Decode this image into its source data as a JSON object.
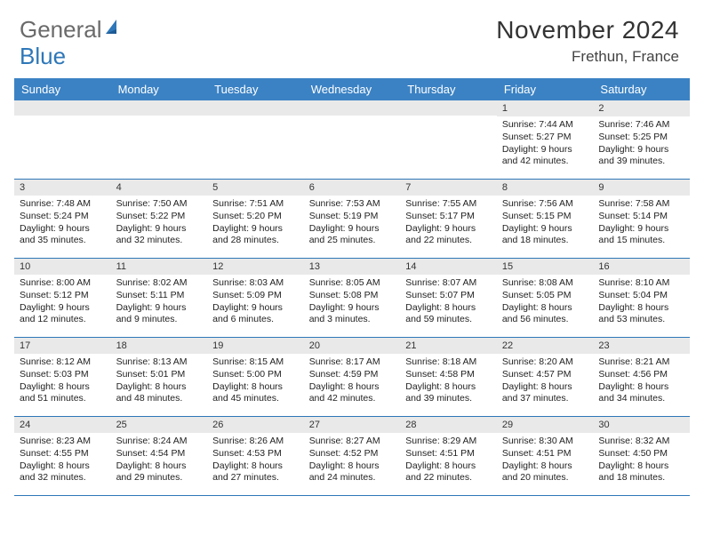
{
  "logo": {
    "part1": "General",
    "part2": "Blue"
  },
  "title": {
    "month": "November 2024",
    "location": "Frethun, France"
  },
  "colors": {
    "header_bg": "#3b82c4",
    "row_border": "#2e77b8",
    "num_bg": "#e9e9e9",
    "logo_gray": "#6a6a6a",
    "logo_blue": "#2e77b8",
    "text": "#222222",
    "bg": "#ffffff"
  },
  "day_names": [
    "Sunday",
    "Monday",
    "Tuesday",
    "Wednesday",
    "Thursday",
    "Friday",
    "Saturday"
  ],
  "weeks": [
    [
      {
        "n": "",
        "sr": "",
        "ss": "",
        "dl": ""
      },
      {
        "n": "",
        "sr": "",
        "ss": "",
        "dl": ""
      },
      {
        "n": "",
        "sr": "",
        "ss": "",
        "dl": ""
      },
      {
        "n": "",
        "sr": "",
        "ss": "",
        "dl": ""
      },
      {
        "n": "",
        "sr": "",
        "ss": "",
        "dl": ""
      },
      {
        "n": "1",
        "sr": "Sunrise: 7:44 AM",
        "ss": "Sunset: 5:27 PM",
        "dl": "Daylight: 9 hours and 42 minutes."
      },
      {
        "n": "2",
        "sr": "Sunrise: 7:46 AM",
        "ss": "Sunset: 5:25 PM",
        "dl": "Daylight: 9 hours and 39 minutes."
      }
    ],
    [
      {
        "n": "3",
        "sr": "Sunrise: 7:48 AM",
        "ss": "Sunset: 5:24 PM",
        "dl": "Daylight: 9 hours and 35 minutes."
      },
      {
        "n": "4",
        "sr": "Sunrise: 7:50 AM",
        "ss": "Sunset: 5:22 PM",
        "dl": "Daylight: 9 hours and 32 minutes."
      },
      {
        "n": "5",
        "sr": "Sunrise: 7:51 AM",
        "ss": "Sunset: 5:20 PM",
        "dl": "Daylight: 9 hours and 28 minutes."
      },
      {
        "n": "6",
        "sr": "Sunrise: 7:53 AM",
        "ss": "Sunset: 5:19 PM",
        "dl": "Daylight: 9 hours and 25 minutes."
      },
      {
        "n": "7",
        "sr": "Sunrise: 7:55 AM",
        "ss": "Sunset: 5:17 PM",
        "dl": "Daylight: 9 hours and 22 minutes."
      },
      {
        "n": "8",
        "sr": "Sunrise: 7:56 AM",
        "ss": "Sunset: 5:15 PM",
        "dl": "Daylight: 9 hours and 18 minutes."
      },
      {
        "n": "9",
        "sr": "Sunrise: 7:58 AM",
        "ss": "Sunset: 5:14 PM",
        "dl": "Daylight: 9 hours and 15 minutes."
      }
    ],
    [
      {
        "n": "10",
        "sr": "Sunrise: 8:00 AM",
        "ss": "Sunset: 5:12 PM",
        "dl": "Daylight: 9 hours and 12 minutes."
      },
      {
        "n": "11",
        "sr": "Sunrise: 8:02 AM",
        "ss": "Sunset: 5:11 PM",
        "dl": "Daylight: 9 hours and 9 minutes."
      },
      {
        "n": "12",
        "sr": "Sunrise: 8:03 AM",
        "ss": "Sunset: 5:09 PM",
        "dl": "Daylight: 9 hours and 6 minutes."
      },
      {
        "n": "13",
        "sr": "Sunrise: 8:05 AM",
        "ss": "Sunset: 5:08 PM",
        "dl": "Daylight: 9 hours and 3 minutes."
      },
      {
        "n": "14",
        "sr": "Sunrise: 8:07 AM",
        "ss": "Sunset: 5:07 PM",
        "dl": "Daylight: 8 hours and 59 minutes."
      },
      {
        "n": "15",
        "sr": "Sunrise: 8:08 AM",
        "ss": "Sunset: 5:05 PM",
        "dl": "Daylight: 8 hours and 56 minutes."
      },
      {
        "n": "16",
        "sr": "Sunrise: 8:10 AM",
        "ss": "Sunset: 5:04 PM",
        "dl": "Daylight: 8 hours and 53 minutes."
      }
    ],
    [
      {
        "n": "17",
        "sr": "Sunrise: 8:12 AM",
        "ss": "Sunset: 5:03 PM",
        "dl": "Daylight: 8 hours and 51 minutes."
      },
      {
        "n": "18",
        "sr": "Sunrise: 8:13 AM",
        "ss": "Sunset: 5:01 PM",
        "dl": "Daylight: 8 hours and 48 minutes."
      },
      {
        "n": "19",
        "sr": "Sunrise: 8:15 AM",
        "ss": "Sunset: 5:00 PM",
        "dl": "Daylight: 8 hours and 45 minutes."
      },
      {
        "n": "20",
        "sr": "Sunrise: 8:17 AM",
        "ss": "Sunset: 4:59 PM",
        "dl": "Daylight: 8 hours and 42 minutes."
      },
      {
        "n": "21",
        "sr": "Sunrise: 8:18 AM",
        "ss": "Sunset: 4:58 PM",
        "dl": "Daylight: 8 hours and 39 minutes."
      },
      {
        "n": "22",
        "sr": "Sunrise: 8:20 AM",
        "ss": "Sunset: 4:57 PM",
        "dl": "Daylight: 8 hours and 37 minutes."
      },
      {
        "n": "23",
        "sr": "Sunrise: 8:21 AM",
        "ss": "Sunset: 4:56 PM",
        "dl": "Daylight: 8 hours and 34 minutes."
      }
    ],
    [
      {
        "n": "24",
        "sr": "Sunrise: 8:23 AM",
        "ss": "Sunset: 4:55 PM",
        "dl": "Daylight: 8 hours and 32 minutes."
      },
      {
        "n": "25",
        "sr": "Sunrise: 8:24 AM",
        "ss": "Sunset: 4:54 PM",
        "dl": "Daylight: 8 hours and 29 minutes."
      },
      {
        "n": "26",
        "sr": "Sunrise: 8:26 AM",
        "ss": "Sunset: 4:53 PM",
        "dl": "Daylight: 8 hours and 27 minutes."
      },
      {
        "n": "27",
        "sr": "Sunrise: 8:27 AM",
        "ss": "Sunset: 4:52 PM",
        "dl": "Daylight: 8 hours and 24 minutes."
      },
      {
        "n": "28",
        "sr": "Sunrise: 8:29 AM",
        "ss": "Sunset: 4:51 PM",
        "dl": "Daylight: 8 hours and 22 minutes."
      },
      {
        "n": "29",
        "sr": "Sunrise: 8:30 AM",
        "ss": "Sunset: 4:51 PM",
        "dl": "Daylight: 8 hours and 20 minutes."
      },
      {
        "n": "30",
        "sr": "Sunrise: 8:32 AM",
        "ss": "Sunset: 4:50 PM",
        "dl": "Daylight: 8 hours and 18 minutes."
      }
    ]
  ]
}
